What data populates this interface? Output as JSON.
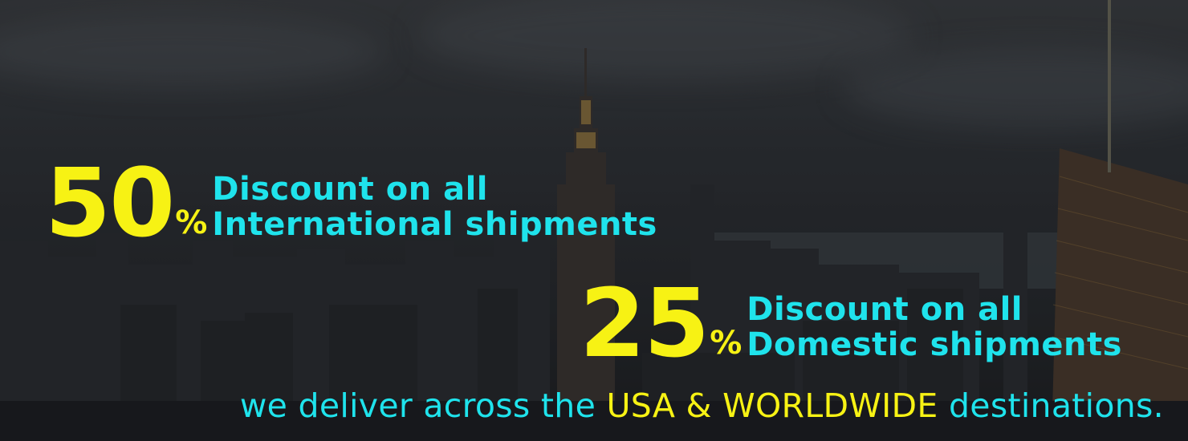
{
  "colors": {
    "yellow": "#f7f214",
    "cyan": "#1fe3ec",
    "sky": "#2e3236"
  },
  "offers": [
    {
      "number": "50",
      "percent": "%",
      "line1": "Discount on all",
      "line2": "International shipments"
    },
    {
      "number": "25",
      "percent": "%",
      "line1": "Discount on all",
      "line2": "Domestic shipments"
    }
  ],
  "tagline": {
    "part1": "we deliver across the ",
    "highlight1": "USA & WORLDWIDE",
    "part2": " destinations."
  }
}
